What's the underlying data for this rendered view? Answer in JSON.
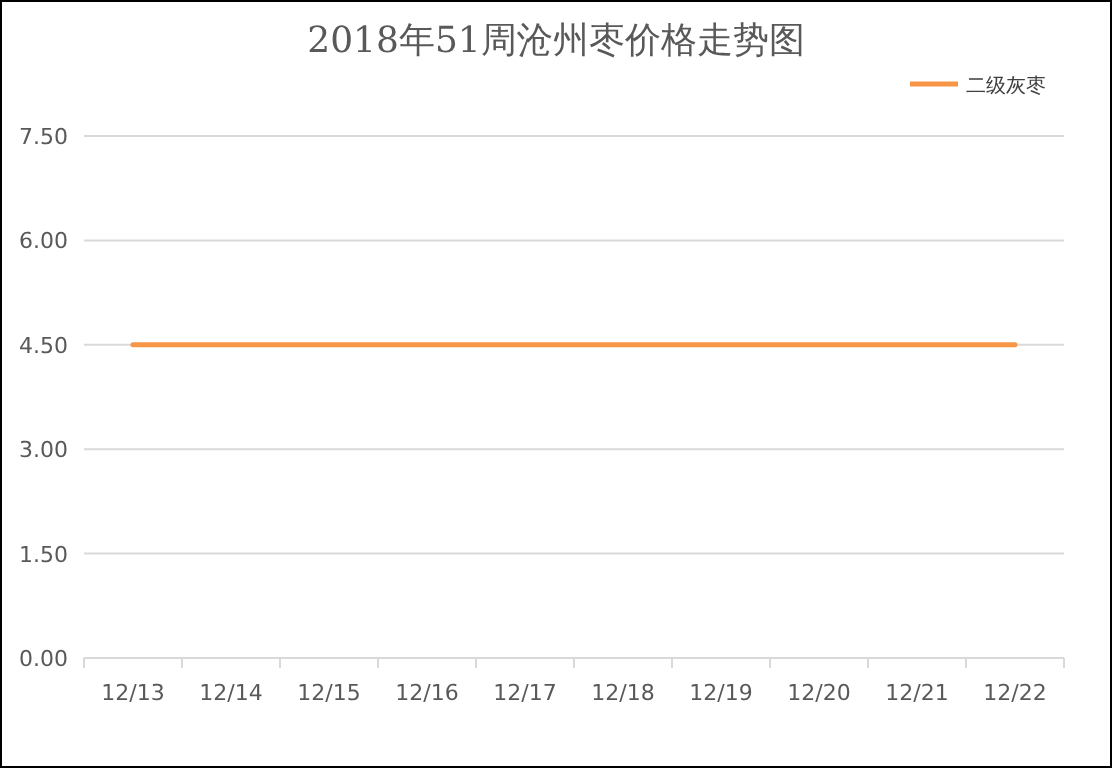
{
  "chart_data": {
    "type": "line",
    "title": "2018年51周沧州枣价格走势图",
    "categories": [
      "12/13",
      "12/14",
      "12/15",
      "12/16",
      "12/17",
      "12/18",
      "12/19",
      "12/20",
      "12/21",
      "12/22"
    ],
    "series": [
      {
        "name": "二级灰枣",
        "color": "#f79646",
        "values": [
          4.5,
          4.5,
          4.5,
          4.5,
          4.5,
          4.5,
          4.5,
          4.5,
          4.5,
          4.5
        ]
      }
    ],
    "ylim": [
      0,
      7.5
    ],
    "yticks": [
      {
        "value": 0,
        "label": "0.00"
      },
      {
        "value": 1.5,
        "label": "1.50"
      },
      {
        "value": 3,
        "label": "3.00"
      },
      {
        "value": 4.5,
        "label": "4.50"
      },
      {
        "value": 6,
        "label": "6.00"
      },
      {
        "value": 7.5,
        "label": "7.50"
      }
    ],
    "grid": "y",
    "legend": "top right",
    "marker": "none",
    "line_style": "solid"
  }
}
